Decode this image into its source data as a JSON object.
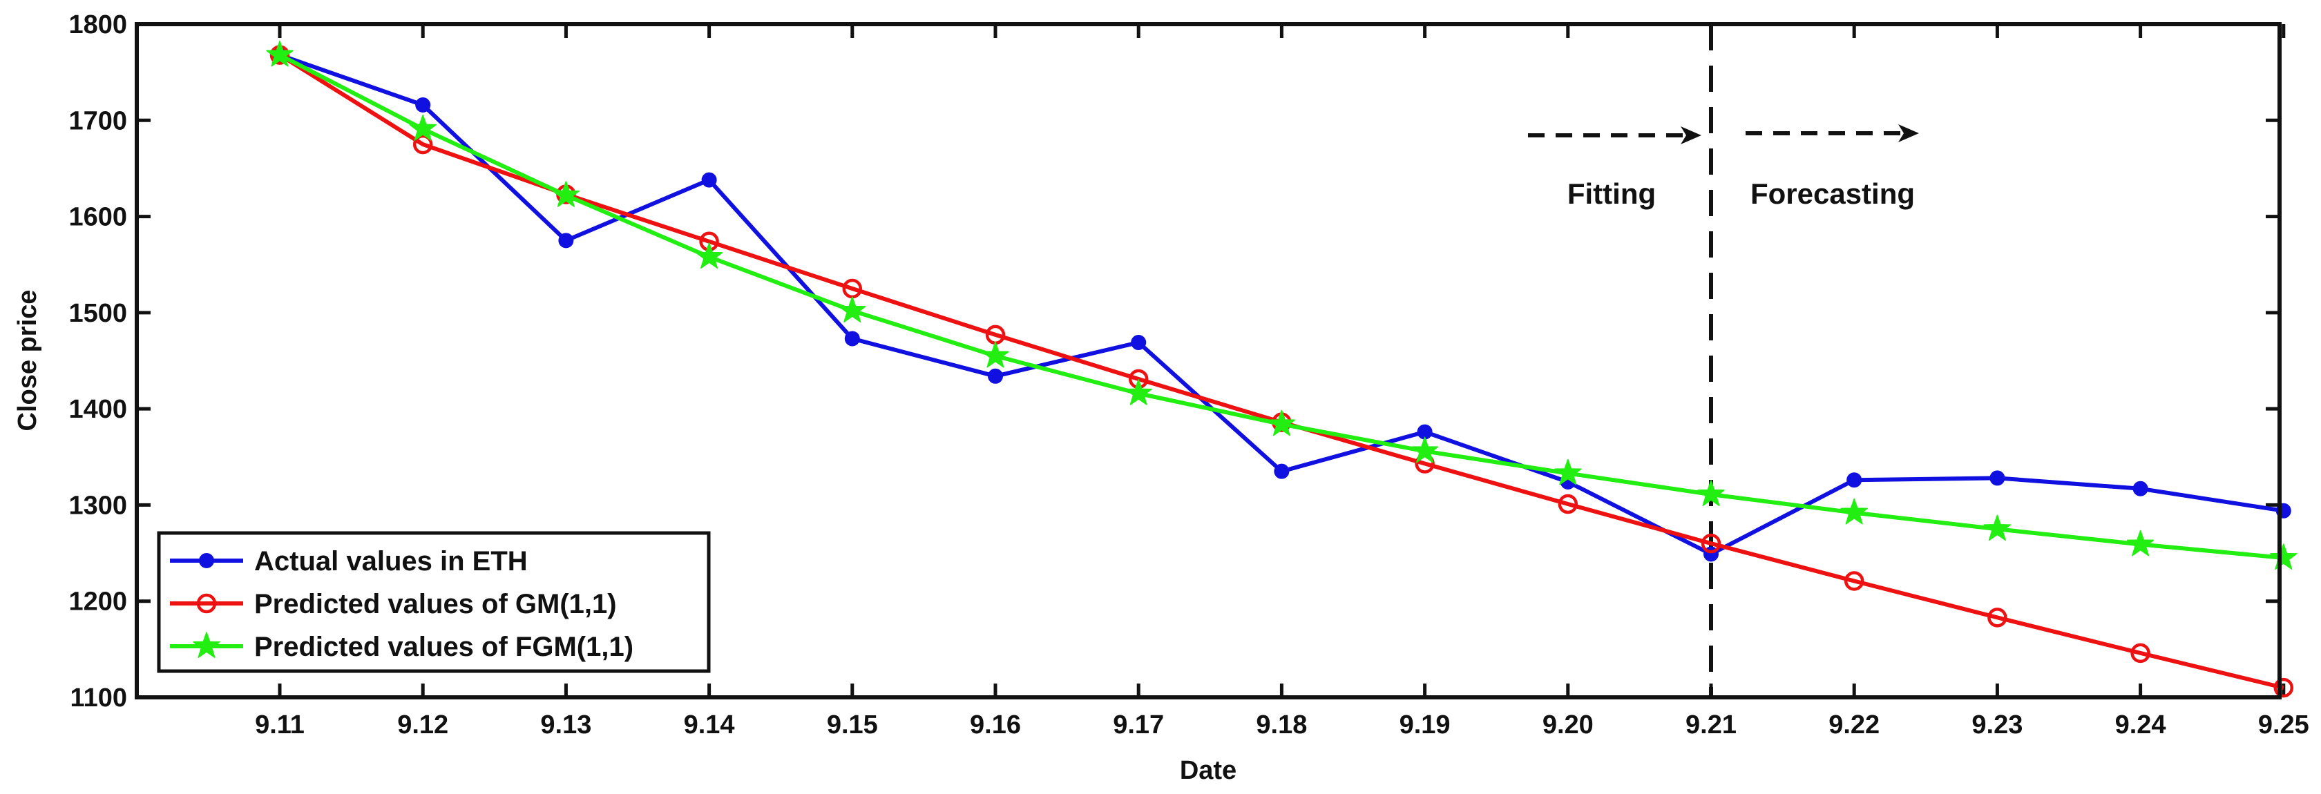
{
  "chart_data": {
    "type": "line",
    "xlabel": "Date",
    "ylabel": "Close price",
    "categories": [
      "9.11",
      "9.12",
      "9.13",
      "9.14",
      "9.15",
      "9.16",
      "9.17",
      "9.18",
      "9.19",
      "9.20",
      "9.21",
      "9.22",
      "9.23",
      "9.24",
      "9.25"
    ],
    "ylim": [
      1100,
      1800
    ],
    "yticks": [
      1100,
      1200,
      1300,
      1400,
      1500,
      1600,
      1700,
      1800
    ],
    "grid": false,
    "legend_position": "bottom-left",
    "series": [
      {
        "name": "Actual values in ETH",
        "color": "#1010e0",
        "marker": "filled-circle",
        "values": [
          1768,
          1716,
          1575,
          1638,
          1473,
          1434,
          1469,
          1335,
          1376,
          1324,
          1249,
          1326,
          1328,
          1317,
          1294
        ]
      },
      {
        "name": "Predicted values of GM(1,1)",
        "color": "#ee1111",
        "marker": "open-circle",
        "values": [
          1768,
          1675,
          1623,
          1574,
          1525,
          1477,
          1431,
          1386,
          1343,
          1301,
          1260,
          1221,
          1183,
          1146,
          1110
        ]
      },
      {
        "name": "Predicted values of FGM(1,1)",
        "color": "#22ee11",
        "marker": "star",
        "values": [
          1768,
          1691,
          1622,
          1558,
          1502,
          1455,
          1416,
          1384,
          1356,
          1333,
          1311,
          1292,
          1275,
          1259,
          1245
        ]
      }
    ],
    "divider_at": "9.21",
    "annotations": {
      "left": "Fitting",
      "right": "Forecasting"
    }
  }
}
